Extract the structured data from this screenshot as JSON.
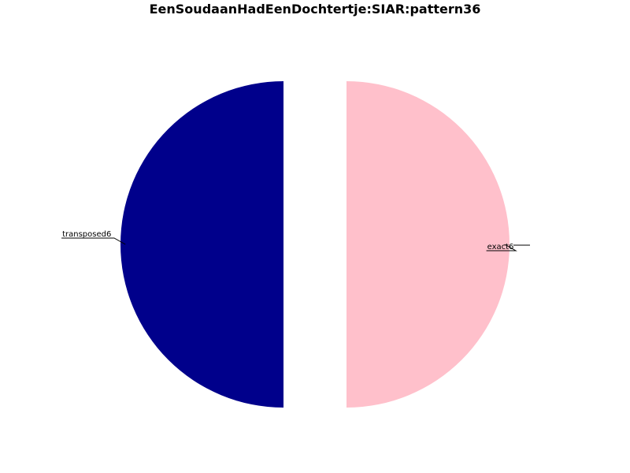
{
  "chart_data": {
    "type": "pie",
    "title": "EenSoudaanHadEenDochtertje:SIAR:pattern36",
    "slices": [
      {
        "label": "transposed6",
        "value": 50,
        "color": "#00008b",
        "exploded": true
      },
      {
        "label": "",
        "value": 0,
        "color": "#ffffff",
        "exploded": true
      },
      {
        "label": "exact6",
        "value": 50,
        "color": "#ffc0cb",
        "exploded": true
      }
    ],
    "legend": "none"
  }
}
